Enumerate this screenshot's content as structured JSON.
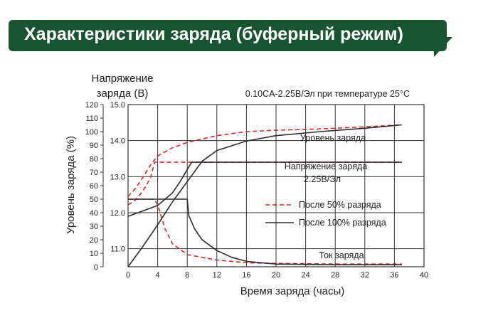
{
  "header": {
    "title": "Характеристики  заряда (буферный режим)"
  },
  "colors": {
    "banner": "#17542f",
    "dashed_series": "#e02424",
    "solid_series": "#2b2b2b"
  },
  "chart_data": {
    "type": "line",
    "title": "Характеристики  заряда (буферный режим)",
    "subtitle": "0.10CA-2.25В/Эл при температуре 25°C",
    "xlabel": "Время заряда (часы)",
    "ylabel_left": "Уровень заряда (%)",
    "ylabel_right_line1": "Напряжение",
    "ylabel_right_line2": "заряда (В)",
    "x_ticks": [
      "0",
      "4",
      "8",
      "12",
      "16",
      "20",
      "24",
      "28",
      "32",
      "36",
      "40"
    ],
    "xlim": [
      0,
      40
    ],
    "y_percent_ticks": [
      "0",
      "10",
      "20",
      "30",
      "40",
      "50",
      "60",
      "70",
      "80",
      "90",
      "100",
      "110",
      "120"
    ],
    "y_percent_lim": [
      0,
      120
    ],
    "y_voltage_ticks": [
      "11.0",
      "12.0",
      "13.0",
      "14.0",
      "15.0"
    ],
    "y_voltage_range": [
      10.5,
      15.0
    ],
    "grid": true,
    "annotations": {
      "charge_level": "Уровень заряда",
      "charge_voltage": "Напряжение заряда",
      "charge_voltage_value": "2.25В/Эл",
      "charge_current": "Ток заряда"
    },
    "legend": {
      "position": "center-right",
      "dashed": "После 50% разряда",
      "solid": "После 100% разряда"
    },
    "series": [
      {
        "name": "После 50% разряда",
        "quantity": "charge level",
        "axis": "percent",
        "style": "dashed",
        "points": [
          [
            0,
            52
          ],
          [
            1,
            58
          ],
          [
            2,
            66
          ],
          [
            3,
            75
          ],
          [
            4,
            82
          ],
          [
            6,
            88
          ],
          [
            8,
            92
          ],
          [
            12,
            97
          ],
          [
            16,
            100
          ],
          [
            20,
            101
          ],
          [
            26,
            102
          ],
          [
            32,
            103.5
          ],
          [
            37,
            105
          ]
        ]
      },
      {
        "name": "После 50% разряда",
        "quantity": "charge voltage",
        "axis": "voltage",
        "style": "dashed",
        "points": [
          [
            0,
            12.22
          ],
          [
            1,
            12.35
          ],
          [
            2,
            12.6
          ],
          [
            3,
            12.95
          ],
          [
            3.6,
            13.4
          ],
          [
            8,
            13.4
          ],
          [
            20,
            13.4
          ],
          [
            37,
            13.4
          ]
        ]
      },
      {
        "name": "После 50% разряда",
        "quantity": "charge current",
        "axis": "percent",
        "style": "dashed",
        "points": [
          [
            0,
            50
          ],
          [
            3.5,
            50
          ],
          [
            4,
            46
          ],
          [
            5,
            28
          ],
          [
            6,
            17
          ],
          [
            8,
            9
          ],
          [
            12,
            5
          ],
          [
            16,
            3
          ],
          [
            20,
            2.5
          ],
          [
            28,
            2
          ],
          [
            37,
            2
          ]
        ]
      },
      {
        "name": "После 100% разряда",
        "quantity": "charge level",
        "axis": "percent",
        "style": "solid",
        "points": [
          [
            0,
            0
          ],
          [
            2,
            15
          ],
          [
            4,
            31
          ],
          [
            6,
            48
          ],
          [
            8,
            63
          ],
          [
            10,
            78
          ],
          [
            12,
            86
          ],
          [
            16,
            93
          ],
          [
            20,
            97
          ],
          [
            26,
            100
          ],
          [
            32,
            102.5
          ],
          [
            37,
            105
          ]
        ]
      },
      {
        "name": "После 100% разряда",
        "quantity": "charge voltage",
        "axis": "voltage",
        "style": "solid",
        "points": [
          [
            0,
            11.9
          ],
          [
            2,
            12.05
          ],
          [
            4,
            12.2
          ],
          [
            6,
            12.55
          ],
          [
            7,
            12.85
          ],
          [
            8,
            13.2
          ],
          [
            8.6,
            13.4
          ],
          [
            20,
            13.4
          ],
          [
            37,
            13.4
          ]
        ]
      },
      {
        "name": "После 100% разряда",
        "quantity": "charge current",
        "axis": "percent",
        "style": "solid",
        "points": [
          [
            0,
            50
          ],
          [
            8,
            50
          ],
          [
            8.2,
            38
          ],
          [
            9,
            28
          ],
          [
            10,
            20
          ],
          [
            12,
            12
          ],
          [
            14,
            7
          ],
          [
            16,
            4
          ],
          [
            20,
            2
          ],
          [
            28,
            1.5
          ],
          [
            37,
            1.5
          ]
        ]
      }
    ]
  }
}
